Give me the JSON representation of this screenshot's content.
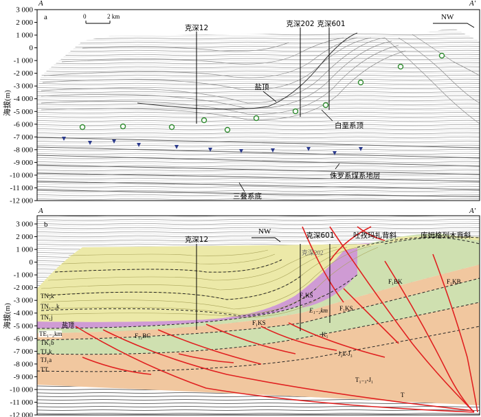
{
  "axis": {
    "ylabel": "海拔(m)",
    "ticks": [
      "3 000",
      "2 000",
      "1 000",
      "0",
      "-1 000",
      "-2 000",
      "-3 000",
      "-4 000",
      "-5 000",
      "-6 000",
      "-7 000",
      "-8 000",
      "-9 000",
      "-10 000",
      "-11 000",
      "-12 000"
    ]
  },
  "panel_a": {
    "letter": "a",
    "corner_left": "A",
    "corner_right": "A'",
    "scale": {
      "zero": "0",
      "dist": "2 km"
    },
    "direction": "NW",
    "wells": [
      "克深12",
      "克深202",
      "克深601"
    ],
    "annotations": {
      "salt_top": "盐顶",
      "cretaceous_top": "白垩系顶",
      "jurassic_coal": "侏罗系煤系地层",
      "triassic_base": "三叠系底"
    }
  },
  "panel_b": {
    "letter": "b",
    "corner_left": "A",
    "corner_right": "A'",
    "direction": "NW",
    "wells": [
      "克深12",
      "克深601"
    ],
    "well_faint": "克深202",
    "structures": {
      "tuyemaza": "吐孜玛扎背斜",
      "kumugelie": "库姆格列木背斜"
    },
    "horizon_labels": [
      "TN₂k",
      "TN₁₋₂k",
      "TN₁j",
      "TE₁₋₂km",
      "TK₁b",
      "TJ₃k",
      "TJ₁a",
      "TT"
    ],
    "unit_labels": {
      "salt": "盐顶",
      "e_km": "E₁₋₂km",
      "k1": "K₁",
      "j": "J₂k-J₃",
      "t": "T₁₋₃-J₁",
      "t_deep": "T"
    },
    "fault_labels": [
      "F₁KS",
      "F₁KS",
      "F₁KS",
      "F₁BK",
      "F₁KB",
      "F₁₂BC"
    ]
  },
  "colors": {
    "yellow": "#ece9a8",
    "purple": "#cf9bd4",
    "green": "#cfe0b0",
    "orange": "#f1c79f",
    "fault": "#e02020",
    "marker": "#2b3a8c",
    "circle": "#2f8a2f"
  }
}
